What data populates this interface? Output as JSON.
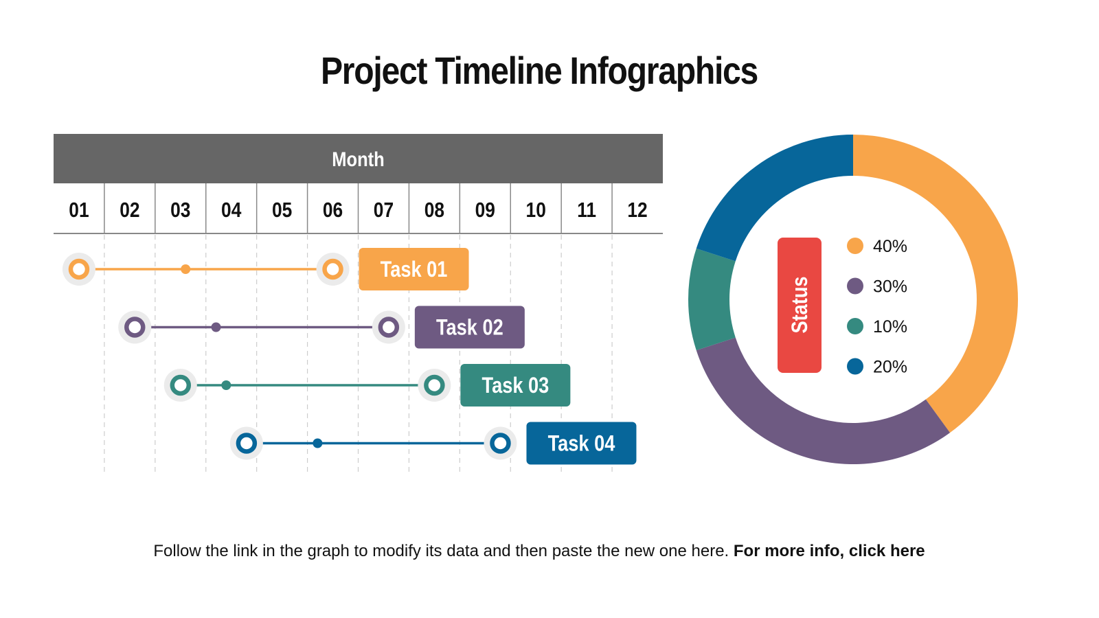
{
  "title": "Project Timeline Infographics",
  "chart_data": [
    {
      "type": "gantt",
      "header": "Month",
      "categories": [
        "01",
        "02",
        "03",
        "04",
        "05",
        "06",
        "07",
        "08",
        "09",
        "10",
        "11",
        "12"
      ],
      "tasks": [
        {
          "name": "Task 01",
          "start": 1.0,
          "mid": 3.1,
          "end": 6.0,
          "color": "#F8A54A"
        },
        {
          "name": "Task 02",
          "start": 2.1,
          "mid": 3.7,
          "end": 7.1,
          "color": "#6E5A82"
        },
        {
          "name": "Task 03",
          "start": 3.0,
          "mid": 3.9,
          "end": 8.0,
          "color": "#358A80"
        },
        {
          "name": "Task 04",
          "start": 4.3,
          "mid": 5.7,
          "end": 9.3,
          "color": "#07669A"
        }
      ]
    },
    {
      "type": "pie",
      "donut": true,
      "label": "Status",
      "label_color": "#E94842",
      "slices": [
        {
          "label": "40%",
          "value": 40,
          "color": "#F8A54A"
        },
        {
          "label": "30%",
          "value": 30,
          "color": "#6E5A82"
        },
        {
          "label": "10%",
          "value": 10,
          "color": "#358A80"
        },
        {
          "label": "20%",
          "value": 20,
          "color": "#07669A"
        }
      ]
    }
  ],
  "footer": {
    "text": "Follow the link in the graph to modify its data and then paste the new one here. ",
    "link": "For more info, click here"
  }
}
